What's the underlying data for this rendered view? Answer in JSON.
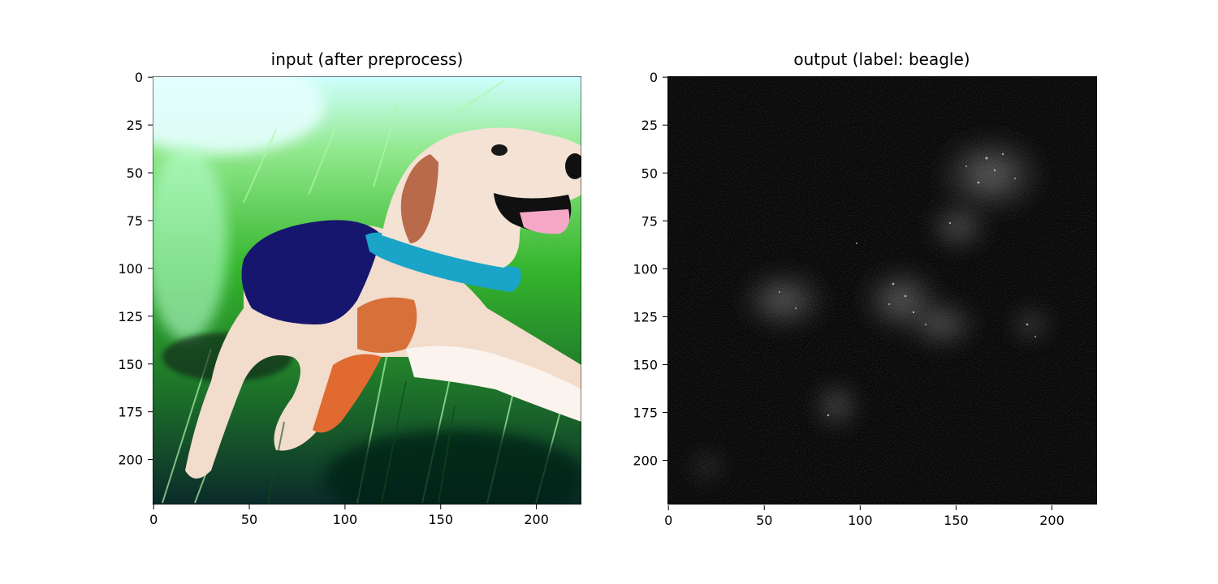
{
  "figure": {
    "panels": [
      {
        "title": "input (after preprocess)",
        "content": "RGB image of a beagle lying in grass"
      },
      {
        "title": "output (label: beagle)",
        "content": "grayscale saliency map"
      }
    ]
  },
  "chart_data": [
    {
      "type": "heatmap",
      "title": "input (after preprocess)",
      "xlabel": "",
      "ylabel": "",
      "xlim": [
        0,
        223
      ],
      "ylim": [
        223,
        0
      ],
      "x_ticks": [
        0,
        50,
        100,
        150,
        200
      ],
      "y_ticks": [
        0,
        25,
        50,
        75,
        100,
        125,
        150,
        175,
        200
      ],
      "grid": false,
      "image_type": "rgb",
      "colors": {
        "grass": "#2f9a2a",
        "sky": "#d8ffff",
        "coat": "#1a1a80",
        "collar": "#20a0c0"
      }
    },
    {
      "type": "heatmap",
      "title": "output (label: beagle)",
      "xlabel": "",
      "ylabel": "",
      "xlim": [
        0,
        223
      ],
      "ylim": [
        223,
        0
      ],
      "x_ticks": [
        0,
        50,
        100,
        150,
        200
      ],
      "y_ticks": [
        0,
        25,
        50,
        75,
        100,
        125,
        150,
        175,
        200
      ],
      "grid": false,
      "image_type": "grayscale",
      "colors": {
        "background": "#050505",
        "highlight": "#ffffff"
      }
    }
  ]
}
